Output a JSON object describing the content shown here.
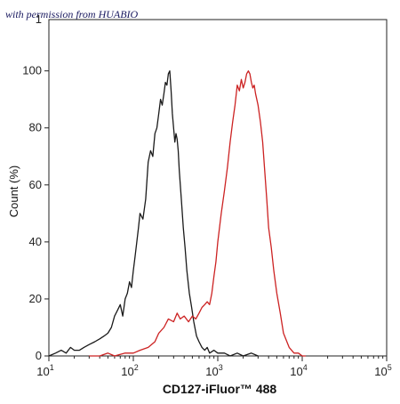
{
  "watermark": "with permission from HUABIO",
  "chart_data": {
    "type": "line",
    "xlabel": "CD127-iFluor™ 488",
    "ylabel": "Count (%)",
    "xscale": "log",
    "xlim": [
      10,
      100000
    ],
    "ylim": [
      0,
      118
    ],
    "x_tick_labels": [
      {
        "base": "10",
        "exp": "1"
      },
      {
        "base": "10",
        "exp": "2"
      },
      {
        "base": "10",
        "exp": "3"
      },
      {
        "base": "10",
        "exp": "4"
      },
      {
        "base": "10",
        "exp": "5"
      }
    ],
    "y_ticks": [
      0,
      20,
      40,
      60,
      80,
      100
    ],
    "y_tick_top_partial": "1",
    "series": [
      {
        "color": "#1a1a1a",
        "x": [
          10,
          12,
          14,
          16,
          18,
          20,
          23,
          26,
          30,
          35,
          40,
          45,
          50,
          55,
          60,
          65,
          70,
          75,
          80,
          85,
          90,
          95,
          100,
          105,
          110,
          115,
          120,
          130,
          140,
          150,
          160,
          170,
          180,
          190,
          200,
          210,
          220,
          230,
          240,
          250,
          260,
          270,
          280,
          290,
          300,
          310,
          320,
          330,
          340,
          350,
          370,
          390,
          410,
          430,
          460,
          490,
          520,
          560,
          600,
          650,
          700,
          750,
          800,
          900,
          1000,
          1200,
          1400,
          1700,
          2000,
          2500,
          3000
        ],
        "values": [
          0,
          1,
          2,
          1,
          3,
          2,
          2,
          3,
          4,
          5,
          6,
          7,
          8,
          10,
          14,
          16,
          18,
          14,
          20,
          22,
          26,
          24,
          30,
          35,
          40,
          45,
          50,
          48,
          55,
          68,
          72,
          70,
          78,
          80,
          85,
          90,
          88,
          92,
          96,
          95,
          99,
          100,
          93,
          85,
          80,
          75,
          78,
          76,
          72,
          65,
          55,
          45,
          38,
          30,
          22,
          17,
          12,
          7,
          5,
          3,
          2,
          3,
          1,
          2,
          1,
          1,
          0,
          1,
          0,
          1,
          0
        ]
      },
      {
        "color": "#cc2222",
        "x": [
          30,
          40,
          50,
          60,
          80,
          100,
          120,
          150,
          180,
          200,
          230,
          260,
          300,
          330,
          360,
          400,
          450,
          500,
          550,
          600,
          650,
          700,
          750,
          800,
          850,
          900,
          950,
          1000,
          1100,
          1200,
          1300,
          1400,
          1500,
          1600,
          1700,
          1800,
          1900,
          2000,
          2100,
          2200,
          2300,
          2400,
          2500,
          2600,
          2700,
          2800,
          2900,
          3000,
          3200,
          3400,
          3600,
          3800,
          4000,
          4300,
          4600,
          5000,
          5500,
          6000,
          7000,
          8000,
          9000,
          10000,
          11000
        ],
        "values": [
          0,
          0,
          1,
          0,
          1,
          1,
          2,
          3,
          5,
          8,
          10,
          13,
          12,
          15,
          13,
          14,
          12,
          14,
          13,
          15,
          17,
          18,
          19,
          18,
          22,
          28,
          33,
          40,
          50,
          58,
          66,
          75,
          82,
          88,
          95,
          93,
          97,
          94,
          96,
          99,
          100,
          99,
          96,
          94,
          95,
          92,
          90,
          88,
          82,
          75,
          65,
          55,
          45,
          38,
          30,
          22,
          15,
          8,
          3,
          1,
          1,
          0,
          0
        ]
      }
    ]
  }
}
